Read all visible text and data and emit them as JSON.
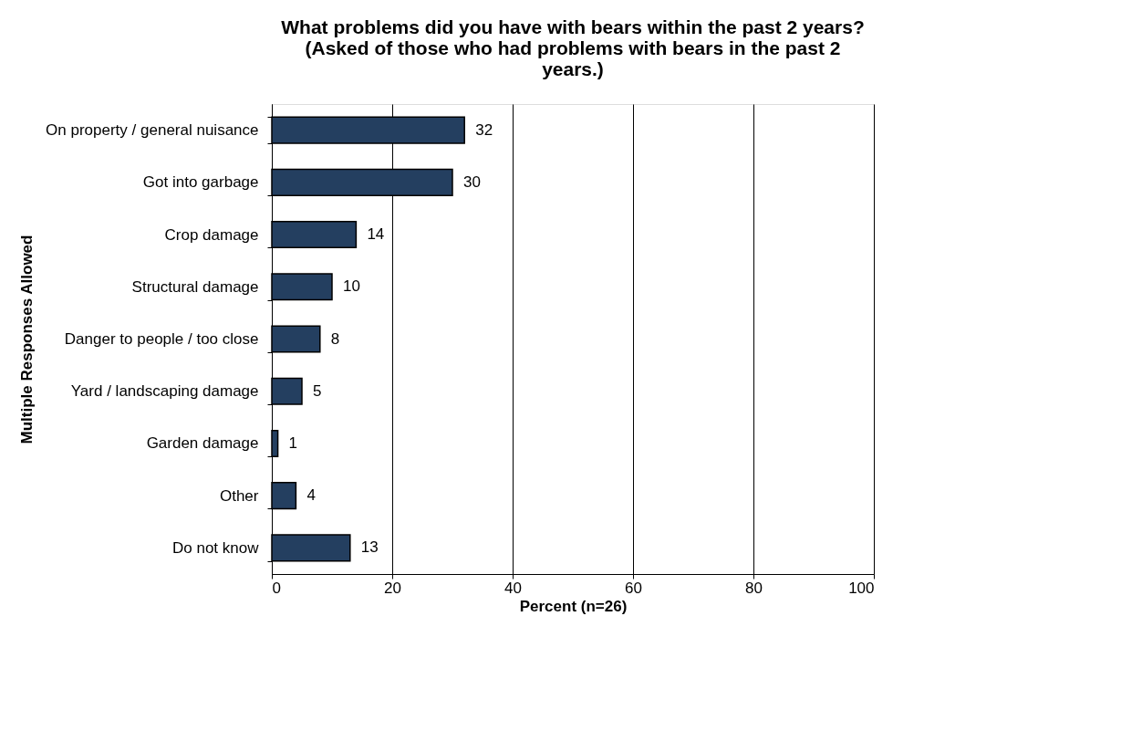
{
  "chart_data": {
    "type": "bar",
    "orientation": "horizontal",
    "title": [
      "What problems did you have with bears within the past 2 years?",
      "(Asked of those who had problems with bears in the past 2",
      "years.)"
    ],
    "xlabel": "Percent (n=26)",
    "ylabel": "Multiple Responses Allowed",
    "categories": [
      "On property / general nuisance",
      "Got into garbage",
      "Crop damage",
      "Structural damage",
      "Danger to people / too close",
      "Yard / landscaping damage",
      "Garden damage",
      "Other",
      "Do not know"
    ],
    "values": [
      32,
      30,
      14,
      10,
      8,
      5,
      1,
      4,
      13
    ],
    "color": "#243f60",
    "xlim": [
      0,
      100
    ],
    "xticks": [
      0,
      20,
      40,
      60,
      80,
      100
    ],
    "grid": "x",
    "data_labels": true
  }
}
